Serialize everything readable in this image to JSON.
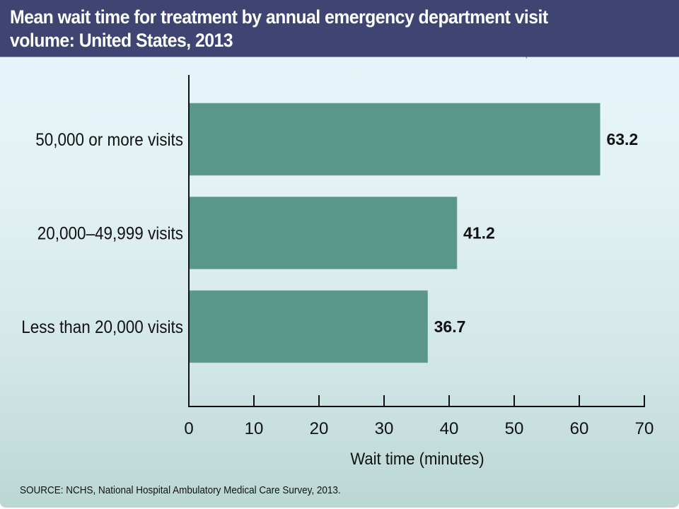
{
  "header": {
    "title": "Mean wait time for treatment by annual emergency department visit volume: United States, 2013",
    "background_color": "#3f4472"
  },
  "stray_mark": "ʼ",
  "chart_data": {
    "type": "bar",
    "orientation": "horizontal",
    "title": "Mean wait time for treatment by annual emergency department visit volume: United States, 2013",
    "categories": [
      "50,000 or more visits",
      "20,000–49,999 visits",
      "Less than 20,000 visits"
    ],
    "values": [
      63.2,
      41.2,
      36.7
    ],
    "value_labels": [
      "63.2",
      "41.2",
      "36.7"
    ],
    "xlabel": "Wait time (minutes)",
    "ylabel": "",
    "xlim": [
      0,
      70
    ],
    "xticks": [
      0,
      10,
      20,
      30,
      40,
      50,
      60,
      70
    ],
    "xtick_labels": [
      "0",
      "10",
      "20",
      "30",
      "40",
      "50",
      "60",
      "70"
    ],
    "grid": false,
    "bar_color": "#5a978b"
  },
  "footer": {
    "source": "SOURCE: NCHS, National Hospital Ambulatory Medical Care Survey, 2013."
  }
}
